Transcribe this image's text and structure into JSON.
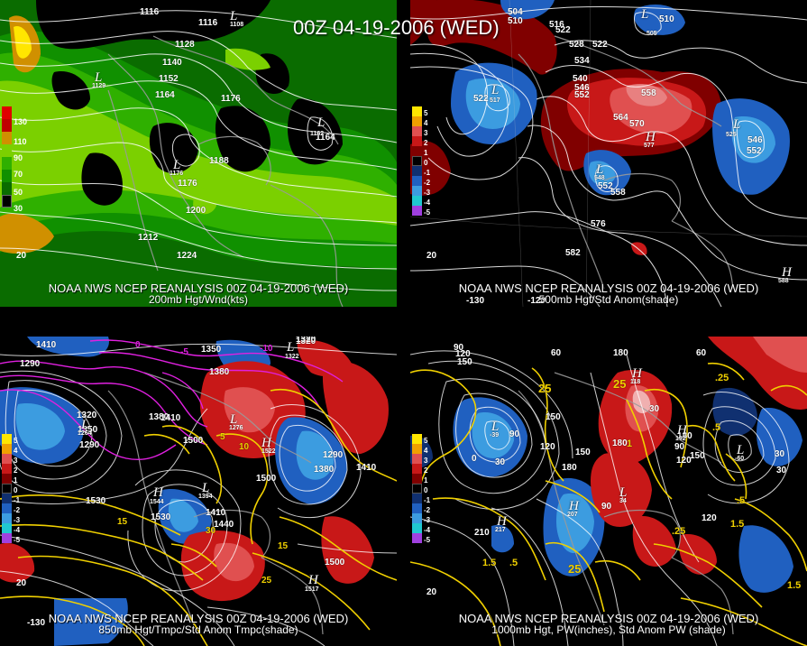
{
  "header": {
    "datestamp": "00Z 04-19-2006 (WED)"
  },
  "panels": [
    {
      "id": "200mb",
      "caption1": "NOAA NWS NCEP REANALYSIS 00Z 04-19-2006 (WED)",
      "caption2": "200mb Hgt/Wnd(kts)",
      "legend": [
        "130",
        "110",
        "90",
        "70",
        "50",
        "30"
      ],
      "legend_colors": [
        "#e00000",
        "#d09000",
        "#7bd000",
        "#2fb000",
        "#109000",
        "#0a6c00"
      ],
      "contour_labels": [
        "1116",
        "1116",
        "1128",
        "1140",
        "1152",
        "1164",
        "1176",
        "1188",
        "1176",
        "1200",
        "1212",
        "1224",
        "1176",
        "1164"
      ],
      "lows": [
        {
          "text": "L",
          "value": "1108"
        },
        {
          "text": "L",
          "value": "1129"
        },
        {
          "text": "L",
          "value": "1176"
        },
        {
          "text": "L",
          "value": "1162"
        }
      ],
      "lat_labels": [
        "20"
      ]
    },
    {
      "id": "500mb",
      "caption1": "NOAA NWS NCEP REANALYSIS 00Z 04-19-2006 (WED)",
      "caption2": "500mb Hgt/Std Anom(shade)",
      "legend": [
        "5",
        "4",
        "3",
        "2",
        "1",
        "0",
        "-1",
        "-2",
        "-3",
        "-4",
        "-5"
      ],
      "legend_colors": [
        "#ffe600",
        "#f0a000",
        "#e05050",
        "#c81818",
        "#800000",
        "#000000",
        "#103070",
        "#2060c0",
        "#3c9ce0",
        "#20c8d0",
        "#a040e0"
      ],
      "contour_labels": [
        "504",
        "510",
        "516",
        "522",
        "528",
        "534",
        "540",
        "546",
        "552",
        "558",
        "564",
        "570",
        "552",
        "558",
        "576",
        "582",
        "552",
        "546",
        "510",
        "522",
        "522",
        "528"
      ],
      "lows": [
        {
          "text": "L",
          "value": "517"
        },
        {
          "text": "L",
          "value": "548"
        },
        {
          "text": "L",
          "value": "525"
        },
        {
          "text": "L",
          "value": "505"
        }
      ],
      "highs": [
        {
          "text": "H",
          "value": "577"
        },
        {
          "text": "H",
          "value": "588"
        }
      ],
      "lat_labels": [
        "20"
      ],
      "lon_labels": [
        "-130",
        "-120"
      ]
    },
    {
      "id": "850mb",
      "caption1": "NOAA NWS NCEP REANALYSIS 00Z 04-19-2006 (WED)",
      "caption2": "850mb Hgt/Tmpc/Std Anom Tmpc(shade)",
      "legend": [
        "5",
        "4",
        "3",
        "2",
        "1",
        "0",
        "-1",
        "-2",
        "-3",
        "-4",
        "-5"
      ],
      "legend_colors": [
        "#ffe600",
        "#f0a000",
        "#e05050",
        "#c81818",
        "#800000",
        "#000000",
        "#103070",
        "#2060c0",
        "#3c9ce0",
        "#20c8d0",
        "#a040e0"
      ],
      "contour_labels": [
        "1410",
        "1290",
        "1320",
        "1350",
        "1380",
        "1410",
        "1320",
        "1290",
        "1500",
        "1530",
        "1530",
        "1410",
        "1440",
        "1500",
        "1290",
        "1380",
        "1410",
        "1500",
        "1350",
        "1380",
        "1320"
      ],
      "temp_labels": [
        "10",
        "15",
        "5",
        "0",
        "-5",
        "-10",
        "30",
        "15",
        "25"
      ],
      "lows": [
        {
          "text": "L",
          "value": "1264"
        },
        {
          "text": "L",
          "value": "1276"
        },
        {
          "text": "L",
          "value": "1394"
        },
        {
          "text": "L",
          "value": "1322"
        }
      ],
      "highs": [
        {
          "text": "H",
          "value": "1544"
        },
        {
          "text": "H",
          "value": "1522"
        },
        {
          "text": "H",
          "value": "1517"
        }
      ],
      "lat_labels": [
        "20"
      ],
      "lon_labels": [
        "-130"
      ]
    },
    {
      "id": "1000mb",
      "caption1": "NOAA NWS NCEP REANALYSIS 00Z 04-19-2006 (WED)",
      "caption2": "1000mb Hgt, PW(inches), Std Anom PW (shade)",
      "legend": [
        "5",
        "4",
        "3",
        "2",
        "1",
        "0",
        "-1",
        "-2",
        "-3",
        "-4",
        "-5"
      ],
      "legend_colors": [
        "#ffe600",
        "#f0a000",
        "#e05050",
        "#c81818",
        "#800000",
        "#000000",
        "#103070",
        "#2060c0",
        "#3c9ce0",
        "#20c8d0",
        "#a040e0"
      ],
      "contour_labels": [
        "90",
        "120",
        "150",
        "60",
        "30",
        "0",
        "90",
        "120",
        "150",
        "180",
        "150",
        "180",
        "90",
        "120",
        "210",
        "180",
        "30",
        "60",
        "30",
        "30",
        "120",
        "90",
        "150",
        "180"
      ],
      "pw_labels": [
        "25",
        "25",
        ".25",
        ".5",
        "1",
        "1.5",
        "25",
        ".5",
        "1.5",
        ".25",
        ".5",
        "1.5"
      ],
      "lows": [
        {
          "text": "L",
          "value": "-39"
        },
        {
          "text": "L",
          "value": "-60"
        },
        {
          "text": "L",
          "value": "34"
        }
      ],
      "highs": [
        {
          "text": "H",
          "value": "217"
        },
        {
          "text": "H",
          "value": "207"
        },
        {
          "text": "H",
          "value": "192"
        },
        {
          "text": "H",
          "value": "118"
        }
      ],
      "lat_labels": [
        "20"
      ]
    }
  ]
}
